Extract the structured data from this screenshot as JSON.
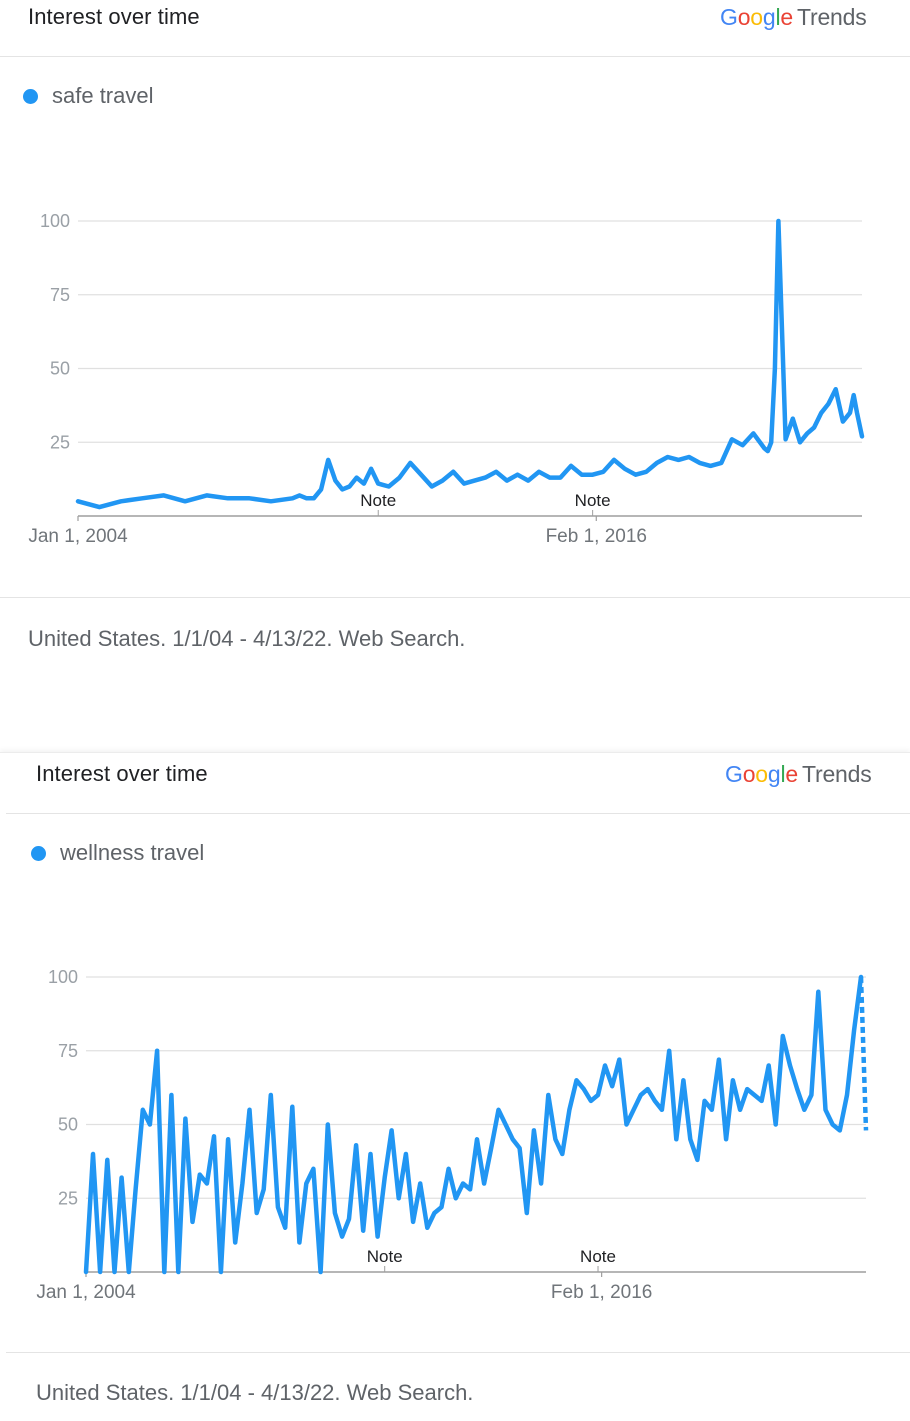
{
  "panels": [
    {
      "header_title": "Interest over time",
      "logo": {
        "google": "Google",
        "trends": "Trends"
      },
      "footer": "United States. 1/1/04 - 4/13/22. Web Search."
    },
    {
      "header_title": "Interest over time",
      "logo": {
        "google": "Google",
        "trends": "Trends"
      },
      "footer": "United States. 1/1/04 - 4/13/22. Web Search."
    }
  ],
  "colors": {
    "series": "#2196F3",
    "grid": "#e0e0e0",
    "axis": "#9e9e9e"
  },
  "chart_data": [
    {
      "type": "line",
      "title": "Interest over time",
      "x_range": [
        "2004-01-01",
        "2022-04-13"
      ],
      "x_tick_labels": [
        {
          "date": "2004-01-01",
          "label": "Jan 1, 2004"
        },
        {
          "date": "2016-02-01",
          "label": "Feb 1, 2016"
        }
      ],
      "ylim": [
        0,
        100
      ],
      "y_ticks": [
        25,
        50,
        75,
        100
      ],
      "grid": true,
      "notes": [
        {
          "date": "2011-01-01",
          "label": "Note"
        },
        {
          "date": "2016-01-01",
          "label": "Note"
        }
      ],
      "series": [
        {
          "name": "safe travel",
          "x": [
            "2004-01-01",
            "2004-07-01",
            "2005-01-01",
            "2005-07-01",
            "2006-01-01",
            "2006-07-01",
            "2007-01-01",
            "2007-07-01",
            "2008-01-01",
            "2008-07-01",
            "2009-01-01",
            "2009-03-01",
            "2009-05-01",
            "2009-07-01",
            "2009-09-01",
            "2009-11-01",
            "2010-01-01",
            "2010-03-01",
            "2010-05-01",
            "2010-07-01",
            "2010-09-01",
            "2010-11-01",
            "2011-01-01",
            "2011-04-01",
            "2011-07-01",
            "2011-10-01",
            "2012-01-01",
            "2012-04-01",
            "2012-07-01",
            "2012-10-01",
            "2013-01-01",
            "2013-04-01",
            "2013-07-01",
            "2013-10-01",
            "2014-01-01",
            "2014-04-01",
            "2014-07-01",
            "2014-10-01",
            "2015-01-01",
            "2015-04-01",
            "2015-07-01",
            "2015-10-01",
            "2016-01-01",
            "2016-04-01",
            "2016-07-01",
            "2016-10-01",
            "2017-01-01",
            "2017-04-01",
            "2017-07-01",
            "2017-10-01",
            "2018-01-01",
            "2018-04-01",
            "2018-07-01",
            "2018-10-01",
            "2019-01-01",
            "2019-04-01",
            "2019-07-01",
            "2019-10-01",
            "2020-01-01",
            "2020-02-01",
            "2020-03-01",
            "2020-04-01",
            "2020-05-01",
            "2020-07-01",
            "2020-09-01",
            "2020-11-01",
            "2021-01-01",
            "2021-03-01",
            "2021-05-01",
            "2021-07-01",
            "2021-09-01",
            "2021-11-01",
            "2022-01-01",
            "2022-02-01",
            "2022-03-01",
            "2022-04-13"
          ],
          "y": [
            5,
            3,
            5,
            6,
            7,
            5,
            7,
            6,
            6,
            5,
            6,
            7,
            6,
            6,
            9,
            19,
            12,
            9,
            10,
            13,
            11,
            16,
            11,
            10,
            13,
            18,
            14,
            10,
            12,
            15,
            11,
            12,
            13,
            15,
            12,
            14,
            12,
            15,
            13,
            13,
            17,
            14,
            14,
            15,
            19,
            16,
            14,
            15,
            18,
            20,
            19,
            20,
            18,
            17,
            18,
            26,
            24,
            28,
            23,
            22,
            25,
            50,
            100,
            26,
            33,
            25,
            28,
            30,
            35,
            38,
            43,
            32,
            35,
            41,
            35,
            27
          ]
        }
      ]
    },
    {
      "type": "line",
      "title": "Interest over time",
      "x_range": [
        "2004-01-01",
        "2022-04-13"
      ],
      "x_tick_labels": [
        {
          "date": "2004-01-01",
          "label": "Jan 1, 2004"
        },
        {
          "date": "2016-02-01",
          "label": "Feb 1, 2016"
        }
      ],
      "ylim": [
        0,
        100
      ],
      "y_ticks": [
        25,
        50,
        75,
        100
      ],
      "grid": true,
      "notes": [
        {
          "date": "2011-01-01",
          "label": "Note"
        },
        {
          "date": "2016-01-01",
          "label": "Note"
        }
      ],
      "partial_from": "2022-03-01",
      "series": [
        {
          "name": "wellness travel",
          "x": [
            "2004-01-01",
            "2004-03-01",
            "2004-05-01",
            "2004-07-01",
            "2004-09-01",
            "2004-11-01",
            "2005-01-01",
            "2005-03-01",
            "2005-05-01",
            "2005-07-01",
            "2005-09-01",
            "2005-11-01",
            "2006-01-01",
            "2006-03-01",
            "2006-05-01",
            "2006-07-01",
            "2006-09-01",
            "2006-11-01",
            "2007-01-01",
            "2007-03-01",
            "2007-05-01",
            "2007-07-01",
            "2007-09-01",
            "2007-11-01",
            "2008-01-01",
            "2008-03-01",
            "2008-05-01",
            "2008-07-01",
            "2008-09-01",
            "2008-11-01",
            "2009-01-01",
            "2009-03-01",
            "2009-05-01",
            "2009-07-01",
            "2009-09-01",
            "2009-11-01",
            "2010-01-01",
            "2010-03-01",
            "2010-05-01",
            "2010-07-01",
            "2010-09-01",
            "2010-11-01",
            "2011-01-01",
            "2011-03-01",
            "2011-05-01",
            "2011-07-01",
            "2011-09-01",
            "2011-11-01",
            "2012-01-01",
            "2012-03-01",
            "2012-05-01",
            "2012-07-01",
            "2012-09-01",
            "2012-11-01",
            "2013-01-01",
            "2013-03-01",
            "2013-05-01",
            "2013-07-01",
            "2013-09-01",
            "2013-11-01",
            "2014-01-01",
            "2014-03-01",
            "2014-05-01",
            "2014-07-01",
            "2014-09-01",
            "2014-11-01",
            "2015-01-01",
            "2015-03-01",
            "2015-05-01",
            "2015-07-01",
            "2015-09-01",
            "2015-11-01",
            "2016-01-01",
            "2016-03-01",
            "2016-05-01",
            "2016-07-01",
            "2016-09-01",
            "2016-11-01",
            "2017-01-01",
            "2017-03-01",
            "2017-05-01",
            "2017-07-01",
            "2017-09-01",
            "2017-11-01",
            "2018-01-01",
            "2018-03-01",
            "2018-05-01",
            "2018-07-01",
            "2018-09-01",
            "2018-11-01",
            "2019-01-01",
            "2019-03-01",
            "2019-05-01",
            "2019-07-01",
            "2019-09-01",
            "2019-11-01",
            "2020-01-01",
            "2020-03-01",
            "2020-05-01",
            "2020-07-01",
            "2020-09-01",
            "2020-11-01",
            "2021-01-01",
            "2021-03-01",
            "2021-05-01",
            "2021-07-01",
            "2021-09-01",
            "2021-11-01",
            "2022-01-01",
            "2022-03-01",
            "2022-04-13"
          ],
          "y": [
            0,
            40,
            0,
            38,
            0,
            32,
            0,
            28,
            55,
            50,
            75,
            0,
            60,
            0,
            52,
            17,
            33,
            30,
            46,
            0,
            45,
            10,
            30,
            55,
            20,
            28,
            60,
            22,
            15,
            56,
            10,
            30,
            35,
            0,
            50,
            20,
            12,
            18,
            43,
            14,
            40,
            12,
            32,
            48,
            25,
            40,
            17,
            30,
            15,
            20,
            22,
            35,
            25,
            30,
            28,
            45,
            30,
            42,
            55,
            50,
            45,
            42,
            20,
            48,
            30,
            60,
            45,
            40,
            55,
            65,
            62,
            58,
            60,
            70,
            63,
            72,
            50,
            55,
            60,
            62,
            58,
            55,
            75,
            45,
            65,
            45,
            38,
            58,
            55,
            72,
            45,
            65,
            55,
            62,
            60,
            58,
            70,
            50,
            80,
            70,
            62,
            55,
            60,
            95,
            55,
            50,
            48,
            60,
            82,
            100,
            48
          ]
        }
      ]
    }
  ]
}
